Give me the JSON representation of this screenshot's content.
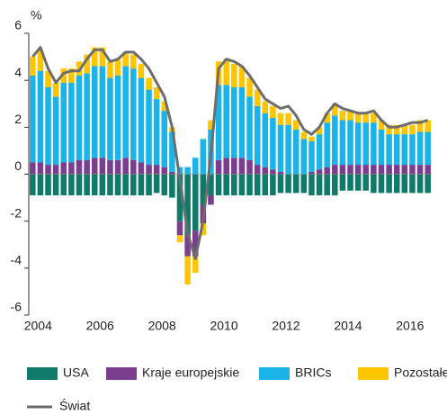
{
  "chart_data": {
    "type": "stacked_bar_line",
    "y_label": "%",
    "categories": [
      "2004",
      null,
      null,
      null,
      null,
      null,
      null,
      null,
      "2006",
      null,
      null,
      null,
      null,
      null,
      null,
      null,
      "2008",
      null,
      null,
      null,
      null,
      null,
      null,
      null,
      "2010",
      null,
      null,
      null,
      null,
      null,
      null,
      null,
      "2012",
      null,
      null,
      null,
      null,
      null,
      null,
      null,
      "2014",
      null,
      null,
      null,
      null,
      null,
      null,
      null,
      "2016",
      null,
      null,
      null
    ],
    "series": [
      {
        "name": "USA",
        "color": "#107a6a",
        "values": [
          -0.9,
          -0.9,
          -0.9,
          -0.9,
          -0.9,
          -0.9,
          -0.9,
          -0.9,
          -0.9,
          -0.9,
          -0.9,
          -0.9,
          -0.9,
          -0.9,
          -0.9,
          -0.9,
          -0.8,
          -0.9,
          -1.0,
          -2.0,
          -2.6,
          -2.4,
          -1.3,
          -0.9,
          -0.9,
          -0.9,
          -0.9,
          -0.9,
          -0.9,
          -0.9,
          -0.9,
          -0.9,
          -0.8,
          -0.8,
          -0.8,
          -0.8,
          -0.9,
          -0.9,
          -0.9,
          -0.9,
          -0.7,
          -0.7,
          -0.7,
          -0.7,
          -0.8,
          -0.8,
          -0.8,
          -0.8,
          -0.8,
          -0.8,
          -0.8,
          -0.8
        ]
      },
      {
        "name": "Kraje europejskie",
        "color": "#7b3d8e",
        "values": [
          0.5,
          0.5,
          0.4,
          0.4,
          0.5,
          0.5,
          0.6,
          0.6,
          0.7,
          0.7,
          0.6,
          0.6,
          0.7,
          0.6,
          0.5,
          0.4,
          0.4,
          0.3,
          0.1,
          -0.6,
          -0.9,
          -1.1,
          -0.8,
          -0.4,
          0.6,
          0.7,
          0.7,
          0.7,
          0.6,
          0.4,
          0.3,
          0.2,
          0.1,
          0.0,
          0.0,
          0.0,
          0.1,
          0.2,
          0.3,
          0.4,
          0.4,
          0.4,
          0.4,
          0.4,
          0.4,
          0.4,
          0.4,
          0.4,
          0.4,
          0.4,
          0.4,
          0.4
        ]
      },
      {
        "name": "BRICs",
        "color": "#1cb4e8",
        "values": [
          3.7,
          3.9,
          3.3,
          2.9,
          3.4,
          3.4,
          3.6,
          3.7,
          3.9,
          3.9,
          3.5,
          3.6,
          3.9,
          3.9,
          3.6,
          3.2,
          2.8,
          2.4,
          1.7,
          0.3,
          0.3,
          0.7,
          1.5,
          1.9,
          3.2,
          3.1,
          3.0,
          3.0,
          2.7,
          2.5,
          2.3,
          2.2,
          2.0,
          2.1,
          1.9,
          1.5,
          1.3,
          1.5,
          1.9,
          2.1,
          1.9,
          1.9,
          1.8,
          1.8,
          1.8,
          1.5,
          1.3,
          1.3,
          1.3,
          1.3,
          1.4,
          1.4
        ]
      },
      {
        "name": "Pozostałe",
        "color": "#ffc600",
        "values": [
          0.8,
          0.9,
          0.7,
          0.6,
          0.6,
          0.6,
          0.6,
          0.8,
          0.8,
          0.8,
          0.7,
          0.7,
          0.6,
          0.6,
          0.6,
          0.5,
          0.5,
          0.4,
          0.2,
          -0.3,
          -1.2,
          -0.7,
          -0.5,
          0.4,
          1.0,
          1.1,
          1.0,
          0.9,
          0.8,
          0.7,
          0.5,
          0.5,
          0.5,
          0.5,
          0.4,
          0.3,
          0.2,
          0.3,
          0.4,
          0.5,
          0.4,
          0.4,
          0.4,
          0.4,
          0.4,
          0.4,
          0.4,
          0.4,
          0.4,
          0.4,
          0.5,
          0.5
        ]
      },
      {
        "name": "Świat",
        "color": "#6d6d6d",
        "kind": "line",
        "values": [
          5.0,
          5.4,
          4.5,
          3.9,
          4.3,
          4.4,
          4.4,
          4.9,
          5.3,
          5.3,
          4.8,
          4.9,
          5.2,
          5.2,
          4.9,
          4.5,
          3.9,
          3.3,
          2.0,
          -0.2,
          -2.5,
          -3.6,
          -2.0,
          0.8,
          4.5,
          4.9,
          4.8,
          4.6,
          4.2,
          3.7,
          3.2,
          3.0,
          2.8,
          2.9,
          2.5,
          1.9,
          1.7,
          2.0,
          2.6,
          3.0,
          2.8,
          2.7,
          2.6,
          2.6,
          2.7,
          2.3,
          2.0,
          2.0,
          2.1,
          2.2,
          2.2,
          2.3
        ]
      }
    ],
    "ylim": [
      -6,
      6
    ],
    "yticks": [
      -6,
      -4,
      -2,
      0,
      2,
      4,
      6
    ],
    "grid": false
  }
}
